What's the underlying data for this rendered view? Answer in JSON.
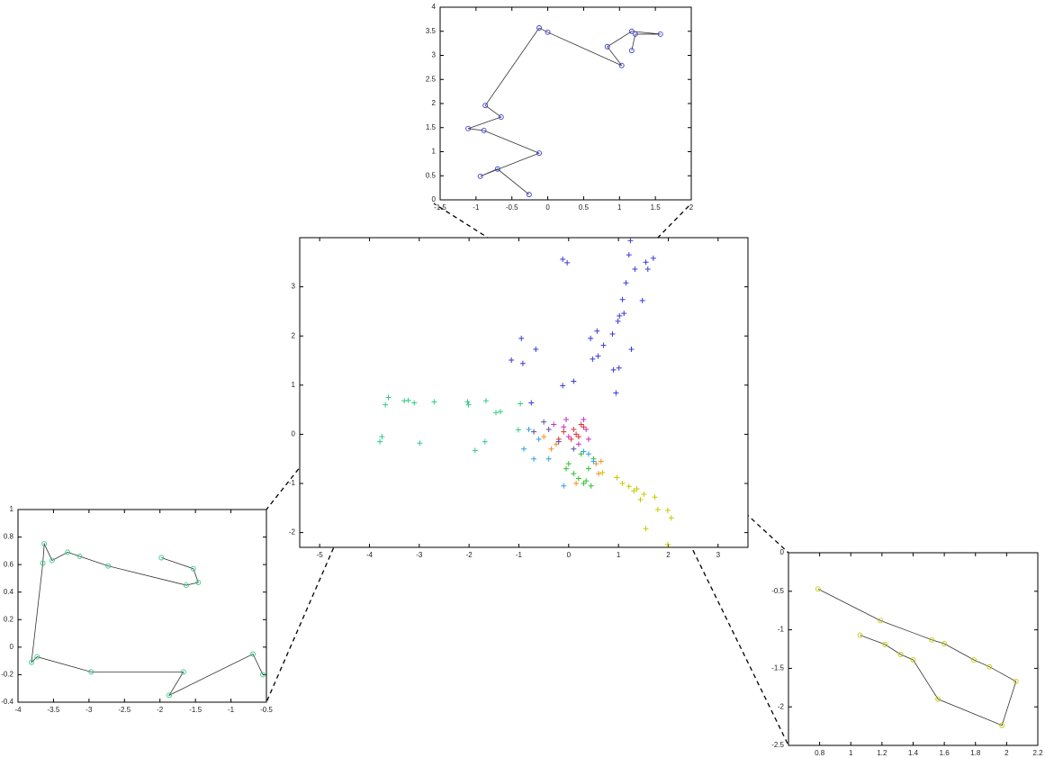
{
  "chart_data": [
    {
      "type": "scatter",
      "xlim": [
        -5.4,
        3.6
      ],
      "ylim": [
        -2.3,
        4
      ],
      "xticks": [
        -5,
        -4,
        -3,
        -2,
        -1,
        0,
        1,
        2,
        3
      ],
      "yticks": [
        -2,
        -1,
        0,
        1,
        2,
        3
      ],
      "series": [
        {
          "color": "#3a3ad8",
          "x": [
            1.24,
            1.21,
            1.55,
            1.7,
            1.59,
            1.33,
            -0.12,
            -0.03,
            1.15,
            1.08,
            1.48,
            1.11,
            1.02,
            0.99,
            0.57,
            0.44,
            0.88,
            -0.95,
            -0.66,
            0.7,
            1.26,
            0.59,
            -1.15,
            -0.92,
            0.48,
            1.01,
            0.9,
            0.1,
            -0.12,
            0.95,
            -0.75
          ],
          "values": [
            3.94,
            3.65,
            3.5,
            3.58,
            3.36,
            3.36,
            3.56,
            3.49,
            3.08,
            2.74,
            2.72,
            2.46,
            2.41,
            2.3,
            2.1,
            1.95,
            2.04,
            1.95,
            1.73,
            1.81,
            1.73,
            1.59,
            1.51,
            1.44,
            1.53,
            1.35,
            1.31,
            1.08,
            0.99,
            0.84,
            0.64
          ]
        },
        {
          "color": "#33cc88",
          "x": [
            -3.62,
            -3.68,
            -3.3,
            -3.22,
            -3.1,
            -2.7,
            -2.03,
            -2.01,
            -1.66,
            -1.46,
            -1.37,
            -0.97,
            -3.75,
            -3.79,
            -2.99,
            -1.68,
            -1.88,
            -1.01
          ],
          "values": [
            0.75,
            0.6,
            0.68,
            0.69,
            0.64,
            0.66,
            0.66,
            0.6,
            0.68,
            0.44,
            0.46,
            0.62,
            -0.05,
            -0.15,
            -0.18,
            -0.15,
            -0.33,
            0.09
          ]
        },
        {
          "color": "#c8c800",
          "x": [
            0.68,
            0.97,
            1.08,
            1.21,
            1.31,
            1.37,
            1.51,
            1.44,
            1.73,
            1.79,
            1.99,
            2.06,
            1.55,
            1.99
          ],
          "values": [
            -0.78,
            -0.88,
            -1.0,
            -1.06,
            -1.15,
            -1.11,
            -1.22,
            -1.33,
            -1.28,
            -1.53,
            -1.55,
            -1.7,
            -1.92,
            -2.24
          ]
        },
        {
          "color": "#e03030",
          "x": [
            0.1,
            0.2,
            -0.1,
            0.3,
            0.05,
            0.25,
            -0.2,
            0.15
          ],
          "values": [
            0.1,
            -0.05,
            0.05,
            0.15,
            -0.1,
            0.2,
            -0.1,
            0.0
          ]
        },
        {
          "color": "#c030c0",
          "x": [
            -0.3,
            -0.1,
            0.0,
            0.3,
            0.35,
            0.2,
            -0.05,
            0.4
          ],
          "values": [
            0.2,
            0.15,
            -0.05,
            0.3,
            0.1,
            -0.2,
            0.3,
            -0.1
          ]
        },
        {
          "color": "#30c030",
          "x": [
            0.0,
            0.1,
            0.2,
            0.3,
            0.4,
            0.5,
            0.25,
            0.35,
            -0.05,
            0.45
          ],
          "values": [
            -0.6,
            -0.8,
            -0.9,
            -1.0,
            -0.7,
            -0.5,
            -0.4,
            -0.95,
            -0.7,
            -1.05
          ]
        },
        {
          "color": "#f09020",
          "x": [
            -0.5,
            -0.35,
            0.55,
            0.6,
            -0.25,
            0.65,
            0.15
          ],
          "values": [
            -0.05,
            -0.3,
            -0.6,
            -0.8,
            -0.2,
            -0.55,
            -1.0
          ]
        },
        {
          "color": "#30a0e0",
          "x": [
            -0.9,
            -0.6,
            -0.4,
            -0.7,
            0.4,
            0.5,
            0.3,
            -0.1,
            -0.8
          ],
          "values": [
            -0.3,
            -0.1,
            -0.5,
            -0.5,
            -0.4,
            -0.55,
            -0.35,
            -1.05,
            0.1
          ]
        },
        {
          "color": "#5050a0",
          "x": [
            -0.5,
            -0.7,
            -0.2,
            0.1,
            -0.4
          ],
          "values": [
            0.25,
            0.05,
            -0.15,
            -0.3,
            0.1
          ]
        }
      ]
    },
    {
      "type": "line",
      "xlim": [
        -1.5,
        2
      ],
      "ylim": [
        0,
        4
      ],
      "xticks": [
        -1.5,
        -1,
        -0.5,
        0,
        0.5,
        1,
        1.5,
        2
      ],
      "yticks": [
        0,
        0.5,
        1,
        1.5,
        2,
        2.5,
        3,
        3.5,
        4
      ],
      "series": [
        {
          "color": "#3a3ad8",
          "x": [
            -0.26,
            -0.7,
            -0.94,
            -0.12,
            -0.89,
            -1.11,
            -0.65,
            -0.87,
            -0.12,
            0.0,
            1.03,
            0.83,
            1.17,
            1.57,
            1.22,
            1.17
          ],
          "values": [
            0.11,
            0.64,
            0.49,
            0.97,
            1.44,
            1.48,
            1.72,
            1.96,
            3.57,
            3.48,
            2.79,
            3.18,
            3.5,
            3.44,
            3.44,
            3.1
          ]
        }
      ]
    },
    {
      "type": "line",
      "xlim": [
        -4,
        -0.5
      ],
      "ylim": [
        -0.4,
        1
      ],
      "xticks": [
        -4,
        -3.5,
        -3,
        -2.5,
        -2,
        -1.5,
        -1,
        -0.5
      ],
      "yticks": [
        -0.4,
        -0.2,
        0,
        0.2,
        0.4,
        0.6,
        0.8,
        1
      ],
      "series": [
        {
          "color": "#33cc88",
          "x": [
            -1.98,
            -1.53,
            -1.46,
            -1.63,
            -2.73,
            -3.13,
            -3.3,
            -3.52,
            -3.63,
            -3.65,
            -3.81,
            -3.73,
            -2.97,
            -1.67,
            -1.87,
            -0.69,
            -0.55
          ],
          "values": [
            0.65,
            0.57,
            0.47,
            0.45,
            0.59,
            0.66,
            0.69,
            0.63,
            0.75,
            0.61,
            -0.11,
            -0.07,
            -0.18,
            -0.18,
            -0.35,
            -0.05,
            -0.2
          ]
        }
      ]
    },
    {
      "type": "line",
      "xlim": [
        0.6,
        2.2
      ],
      "ylim": [
        -2.5,
        0
      ],
      "xticks": [
        0.8,
        1,
        1.2,
        1.4,
        1.6,
        1.8,
        2,
        2.2
      ],
      "yticks": [
        -2.5,
        -2,
        -1.5,
        -1,
        -0.5,
        0
      ],
      "series": [
        {
          "color": "#c8c800",
          "x": [
            0.79,
            1.19,
            1.52,
            1.6,
            1.79,
            1.89,
            2.06,
            1.97,
            1.56,
            1.4,
            1.32,
            1.22,
            1.06
          ],
          "values": [
            -0.47,
            -0.88,
            -1.13,
            -1.18,
            -1.39,
            -1.48,
            -1.67,
            -2.24,
            -1.9,
            -1.39,
            -1.32,
            -1.19,
            -1.07
          ]
        }
      ]
    }
  ]
}
